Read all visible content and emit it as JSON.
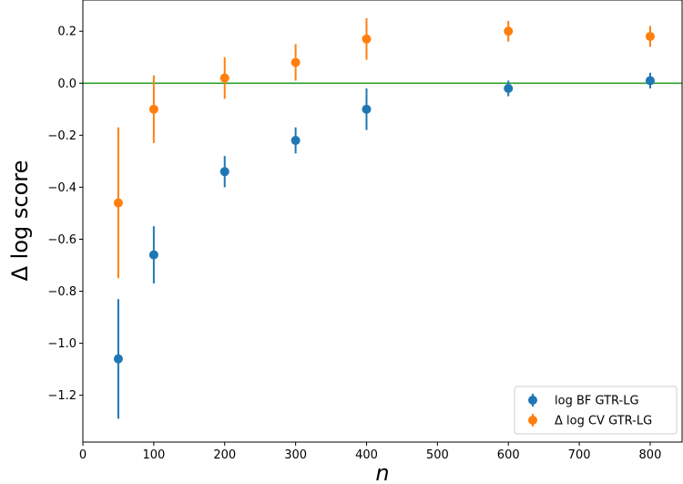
{
  "chart_data": {
    "type": "scatter",
    "xlabel": "n",
    "ylabel": "Δ log score",
    "xlim": [
      0,
      845
    ],
    "ylim": [
      -1.38,
      0.32
    ],
    "xticks": [
      0,
      100,
      200,
      300,
      400,
      500,
      600,
      700,
      800
    ],
    "yticks": [
      -1.2,
      -1.0,
      -0.8,
      -0.6,
      -0.4,
      -0.2,
      0.0,
      0.2
    ],
    "ytick_labels": [
      "−1.2",
      "−1.0",
      "−0.8",
      "−0.6",
      "−0.4",
      "−0.2",
      "0.0",
      "0.2"
    ],
    "reference_line": {
      "y": 0.0,
      "color": "#2ca02c"
    },
    "legend_placement": "lower-right",
    "grid": false,
    "series": [
      {
        "name": "log BF GTR-LG",
        "color": "#1f77b4",
        "x": [
          50,
          100,
          200,
          300,
          400,
          600,
          800
        ],
        "y": [
          -1.06,
          -0.66,
          -0.34,
          -0.22,
          -0.1,
          -0.02,
          0.01
        ],
        "err_low": [
          -1.29,
          -0.77,
          -0.4,
          -0.27,
          -0.18,
          -0.05,
          -0.02
        ],
        "err_high": [
          -0.83,
          -0.55,
          -0.28,
          -0.17,
          -0.02,
          0.01,
          0.04
        ]
      },
      {
        "name": "Δ log CV GTR-LG",
        "color": "#ff7f0e",
        "x": [
          50,
          100,
          200,
          300,
          400,
          600,
          800
        ],
        "y": [
          -0.46,
          -0.1,
          0.02,
          0.08,
          0.17,
          0.2,
          0.18
        ],
        "err_low": [
          -0.75,
          -0.23,
          -0.06,
          0.01,
          0.09,
          0.16,
          0.14
        ],
        "err_high": [
          -0.17,
          0.03,
          0.1,
          0.15,
          0.25,
          0.24,
          0.22
        ]
      }
    ]
  }
}
